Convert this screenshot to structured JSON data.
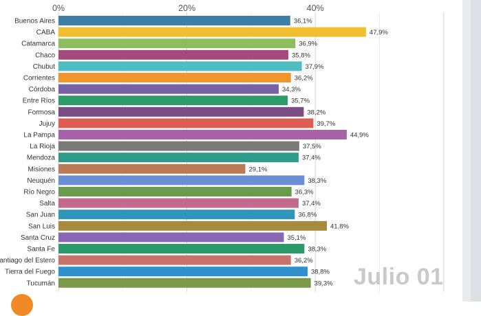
{
  "chart_data": {
    "type": "bar",
    "orientation": "horizontal",
    "x_tick_labels": [
      "0%",
      "20%",
      "40%"
    ],
    "xlim": [
      0,
      60
    ],
    "grid": true,
    "categories": [
      "Buenos Aires",
      "CABA",
      "Catamarca",
      "Chaco",
      "Chubut",
      "Corrientes",
      "Córdoba",
      "Entre Ríos",
      "Formosa",
      "Jujuy",
      "La Pampa",
      "La Rioja",
      "Mendoza",
      "Misiones",
      "Neuquén",
      "Río Negro",
      "Salta",
      "San Juan",
      "San Luis",
      "Santa Cruz",
      "Santa Fe",
      "antiago del Estero",
      "Tierra del Fuego",
      "Tucumán"
    ],
    "values": [
      36.1,
      47.9,
      36.9,
      35.8,
      37.9,
      36.2,
      34.3,
      35.7,
      38.2,
      39.7,
      44.9,
      37.5,
      37.4,
      29.1,
      38.3,
      36.3,
      37.4,
      36.8,
      41.8,
      35.1,
      38.3,
      36.2,
      38.8,
      39.3
    ],
    "value_labels": [
      "36,1%",
      "47,9%",
      "36,9%",
      "35,8%",
      "37,9%",
      "36,2%",
      "34,3%",
      "35,7%",
      "38,2%",
      "39,7%",
      "44,9%",
      "37,5%",
      "37,4%",
      "29,1%",
      "38,3%",
      "36,3%",
      "37,4%",
      "36,8%",
      "41,8%",
      "35,1%",
      "38,3%",
      "36,2%",
      "38,8%",
      "39,3%"
    ],
    "colors": [
      "#3d7fa6",
      "#f0bf2f",
      "#8cbd5f",
      "#a44a7c",
      "#4ebcc0",
      "#f0962f",
      "#7862a6",
      "#2e9a6a",
      "#7a4d85",
      "#dd5d55",
      "#a862a8",
      "#7a7a7a",
      "#2e9a8c",
      "#b97a55",
      "#6a8fd6",
      "#6a9a4e",
      "#c56a8f",
      "#2e96b8",
      "#a88a3e",
      "#8a67b3",
      "#2a9a6a",
      "#c8736a",
      "#2e90cc",
      "#7a9a4a"
    ]
  },
  "watermark": "Julio 01"
}
